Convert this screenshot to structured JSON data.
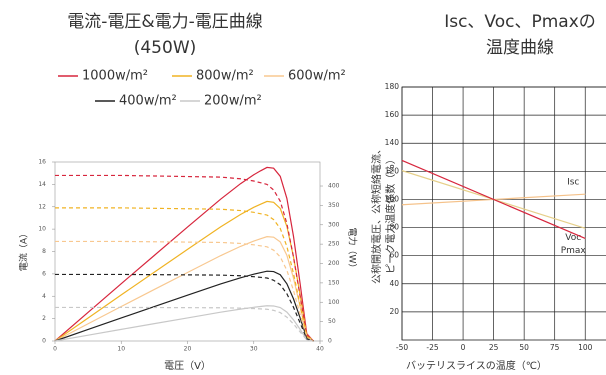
{
  "chart_data": [
    {
      "type": "line",
      "title": [
        "電流-電圧&電力-電圧曲線",
        "(450W)"
      ],
      "xlabel": "電圧（V）",
      "ylabel": "電流（A）",
      "y2label": "電力（W）",
      "xlim": [
        0,
        40
      ],
      "xticks": [
        0,
        10,
        20,
        30,
        40
      ],
      "ylim": [
        0,
        16
      ],
      "yticks": [
        0,
        2,
        4,
        6,
        8,
        10,
        12,
        14,
        16
      ],
      "y2lim": [
        0,
        462
      ],
      "y2ticks": [
        0,
        50,
        100,
        150,
        200,
        250,
        300,
        350,
        400
      ],
      "x": [
        0,
        5,
        10,
        15,
        20,
        25,
        28,
        30,
        31,
        32,
        33,
        34,
        35,
        36,
        37,
        38,
        39
      ],
      "series": [
        {
          "name": "1000w/m²",
          "color": "#d7263d",
          "axis": "y2",
          "values": [
            0,
            74,
            148,
            221,
            294,
            366,
            406,
            429,
            439,
            448,
            446,
            425,
            368,
            270,
            148,
            19,
            0
          ]
        },
        {
          "name": "800w/m²",
          "color": "#f0b323",
          "axis": "y2",
          "values": [
            0,
            59.5,
            119,
            177.9,
            236.4,
            294.5,
            326.5,
            345,
            352.8,
            360.3,
            358.1,
            342,
            295.8,
            217.1,
            118.8,
            15.2,
            0
          ]
        },
        {
          "name": "600w/m²",
          "color": "#f8c890",
          "axis": "y2",
          "values": [
            0,
            44.5,
            89,
            133.1,
            176.8,
            220.3,
            244.2,
            258,
            263.8,
            269.4,
            268,
            255.7,
            221.2,
            162.4,
            88.8,
            11.4,
            0
          ]
        },
        {
          "name": "400w/m²",
          "color": "#222222",
          "axis": "y2",
          "values": [
            0,
            29.8,
            59.5,
            89,
            118.2,
            147.3,
            163.2,
            172.5,
            176.4,
            180.2,
            179.2,
            171,
            147.7,
            108.7,
            59.6,
            7.6,
            0
          ]
        },
        {
          "name": "200w/m²",
          "color": "#c8c8c8",
          "axis": "y2",
          "values": [
            0,
            15,
            30,
            44.9,
            59.6,
            74.3,
            82.3,
            87,
            89,
            90.9,
            90.4,
            86.4,
            74.6,
            54.7,
            30,
            3.8,
            0
          ]
        },
        {
          "color": "#d7263d",
          "linestyle": "dashed",
          "values": [
            14.8,
            14.8,
            14.8,
            14.75,
            14.7,
            14.65,
            14.5,
            14.3,
            14.15,
            14,
            13.5,
            12.5,
            10.5,
            7.5,
            4,
            0.5,
            0
          ]
        },
        {
          "color": "#f0b323",
          "linestyle": "dashed",
          "values": [
            11.9,
            11.9,
            11.9,
            11.86,
            11.82,
            11.78,
            11.66,
            11.5,
            11.38,
            11.26,
            10.85,
            10.06,
            8.45,
            6.03,
            3.21,
            0.4,
            0
          ]
        },
        {
          "color": "#f8c890",
          "linestyle": "dashed",
          "values": [
            8.9,
            8.9,
            8.9,
            8.87,
            8.84,
            8.81,
            8.72,
            8.6,
            8.51,
            8.42,
            8.12,
            7.52,
            6.32,
            4.51,
            2.4,
            0.3,
            0
          ]
        },
        {
          "color": "#222222",
          "linestyle": "dashed",
          "values": [
            5.95,
            5.95,
            5.95,
            5.93,
            5.91,
            5.89,
            5.83,
            5.75,
            5.69,
            5.63,
            5.43,
            5.03,
            4.22,
            3.02,
            1.61,
            0.2,
            0
          ]
        },
        {
          "color": "#c8c8c8",
          "linestyle": "dashed",
          "values": [
            3,
            3,
            3,
            2.99,
            2.98,
            2.97,
            2.94,
            2.9,
            2.87,
            2.84,
            2.74,
            2.54,
            2.13,
            1.52,
            0.81,
            0.1,
            0
          ]
        }
      ]
    },
    {
      "type": "line",
      "title": [
        "Isc、Voc、Pmaxの",
        "温度曲線"
      ],
      "xlabel": "バッテリスライスの温度（℃）",
      "ylabel": [
        "公称開放電圧、公称短絡電流、",
        "ピーク電力温度係数（%）"
      ],
      "xlim": [
        -50,
        117
      ],
      "xticks": [
        -50,
        -25,
        0,
        25,
        50,
        75,
        100
      ],
      "ylim": [
        0,
        180
      ],
      "yticks": [
        20,
        40,
        60,
        80,
        100,
        120,
        140,
        160,
        180
      ],
      "grid": true,
      "x": [
        -50,
        100
      ],
      "series": [
        {
          "name": "Isc",
          "color": "#f5c28a",
          "values": [
            96.25,
            103.75
          ]
        },
        {
          "name": "Voc",
          "color": "#e6d08a",
          "values": [
            120.5,
            79.5
          ]
        },
        {
          "name": "Pmax",
          "color": "#d7263d",
          "values": [
            127.75,
            72.25
          ]
        }
      ]
    }
  ]
}
